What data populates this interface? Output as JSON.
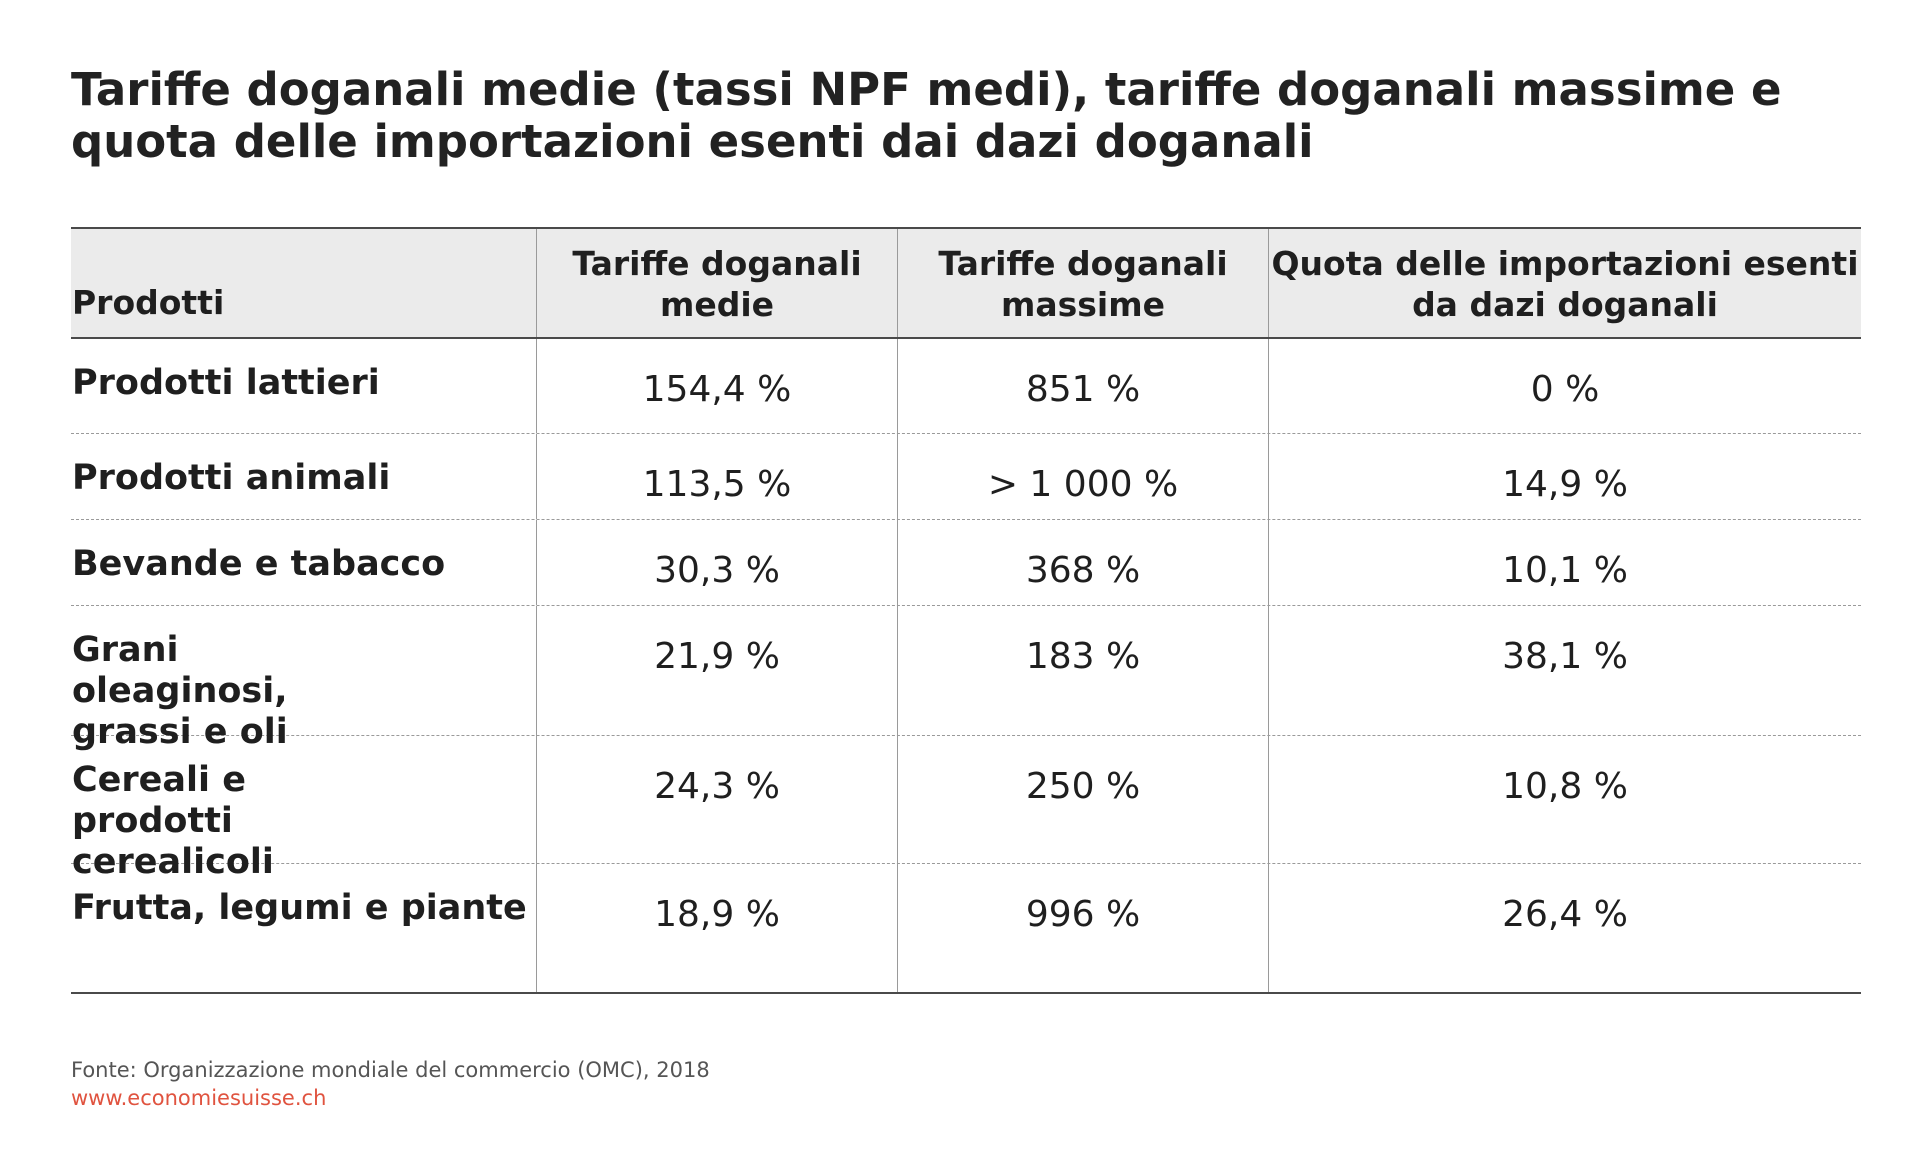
{
  "title": "Tariffe doganali medie (tassi NPF medi), tariffe doganali massime e quota delle importazioni esenti dai dazi doganali",
  "chart_data": {
    "type": "table",
    "columns": [
      "Prodotti",
      "Tariffe doganali medie",
      "Tariffe doganali massime",
      "Quota delle importazioni esenti da dazi doganali"
    ],
    "rows": [
      [
        "Prodotti lattieri",
        "154,4 %",
        "851 %",
        "0 %"
      ],
      [
        "Prodotti animali",
        "113,5 %",
        "> 1 000 %",
        "14,9 %"
      ],
      [
        "Bevande e tabacco",
        "30,3 %",
        "368 %",
        "10,1 %"
      ],
      [
        "Grani oleaginosi, grassi e oli",
        "21,9 %",
        "183 %",
        "38,1 %"
      ],
      [
        "Cereali e prodotti cerealicoli",
        "24,3 %",
        "250 %",
        "10,8 %"
      ],
      [
        "Frutta, legumi e piante",
        "18,9 %",
        "996 %",
        "26,4 %"
      ]
    ]
  },
  "footer": {
    "source": "Fonte: Organizzazione mondiale del commercio (OMC), 2018",
    "url": "www.economiesuisse.ch"
  },
  "colors": {
    "header_bg": "#ebebeb",
    "url": "#e0533f",
    "text": "#1f1f1f"
  }
}
